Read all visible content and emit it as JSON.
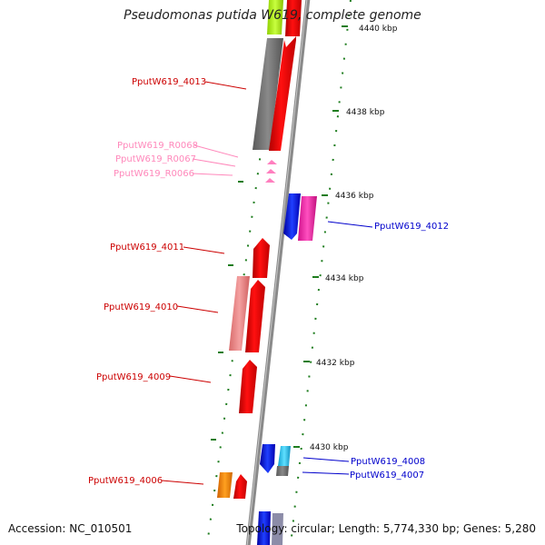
{
  "title": "Pseudomonas putida W619, complete genome",
  "footer": {
    "accession": "Accession: NC_010501",
    "topology": "Topology: circular; Length: 5,774,330 bp; Genes: 5,280"
  },
  "colors": {
    "backbone": "#7f7f7f",
    "tick": "#1e7d1e",
    "red": "#ff0000",
    "pink": "#ff80c0",
    "blue": "#0000ff"
  },
  "ruler": [
    {
      "label": "4440 kbp",
      "kbp": 4440
    },
    {
      "label": "4438 kbp",
      "kbp": 4438
    },
    {
      "label": "4436 kbp",
      "kbp": 4436
    },
    {
      "label": "4434 kbp",
      "kbp": 4434
    },
    {
      "label": "4432 kbp",
      "kbp": 4432
    },
    {
      "label": "4430 kbp",
      "kbp": 4430
    }
  ],
  "gene_labels": [
    {
      "text": "PputW619_4013",
      "color": "#cc0000"
    },
    {
      "text": "PputW619_R0068",
      "color": "#ff88bb"
    },
    {
      "text": "PputW619_R0067",
      "color": "#ff88bb"
    },
    {
      "text": "PputW619_R0066",
      "color": "#ff88bb"
    },
    {
      "text": "PputW619_4012",
      "color": "#0000cc"
    },
    {
      "text": "PputW619_4011",
      "color": "#cc0000"
    },
    {
      "text": "PputW619_4010",
      "color": "#cc0000"
    },
    {
      "text": "PputW619_4009",
      "color": "#cc0000"
    },
    {
      "text": "PputW619_4008",
      "color": "#0000cc"
    },
    {
      "text": "PputW619_4007",
      "color": "#0000cc"
    },
    {
      "text": "PputW619_4006",
      "color": "#cc0000"
    }
  ]
}
